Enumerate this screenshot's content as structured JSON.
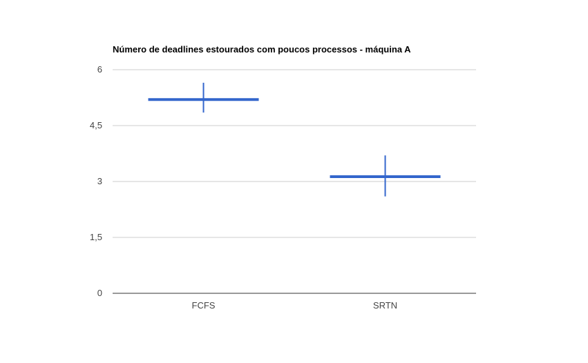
{
  "chart_data": {
    "type": "bar",
    "title": "Número de deadlines estourados com poucos processos - máquina A",
    "xlabel": "",
    "ylabel": "",
    "categories": [
      "FCFS",
      "SRTN"
    ],
    "series": [
      {
        "values": [
          5.2,
          3.13
        ],
        "error_low": [
          4.85,
          2.6
        ],
        "error_high": [
          5.65,
          3.7
        ]
      }
    ],
    "ylim": [
      0,
      6
    ],
    "yticks": [
      {
        "value": 0,
        "label": "0"
      },
      {
        "value": 1.5,
        "label": "1,5"
      },
      {
        "value": 3,
        "label": "3"
      },
      {
        "value": 4.5,
        "label": "4,5"
      },
      {
        "value": 6,
        "label": "6"
      }
    ],
    "grid": true,
    "legend": "none",
    "colors": {
      "series": "#3366cc",
      "grid": "#cccccc",
      "axis": "#333333"
    }
  }
}
